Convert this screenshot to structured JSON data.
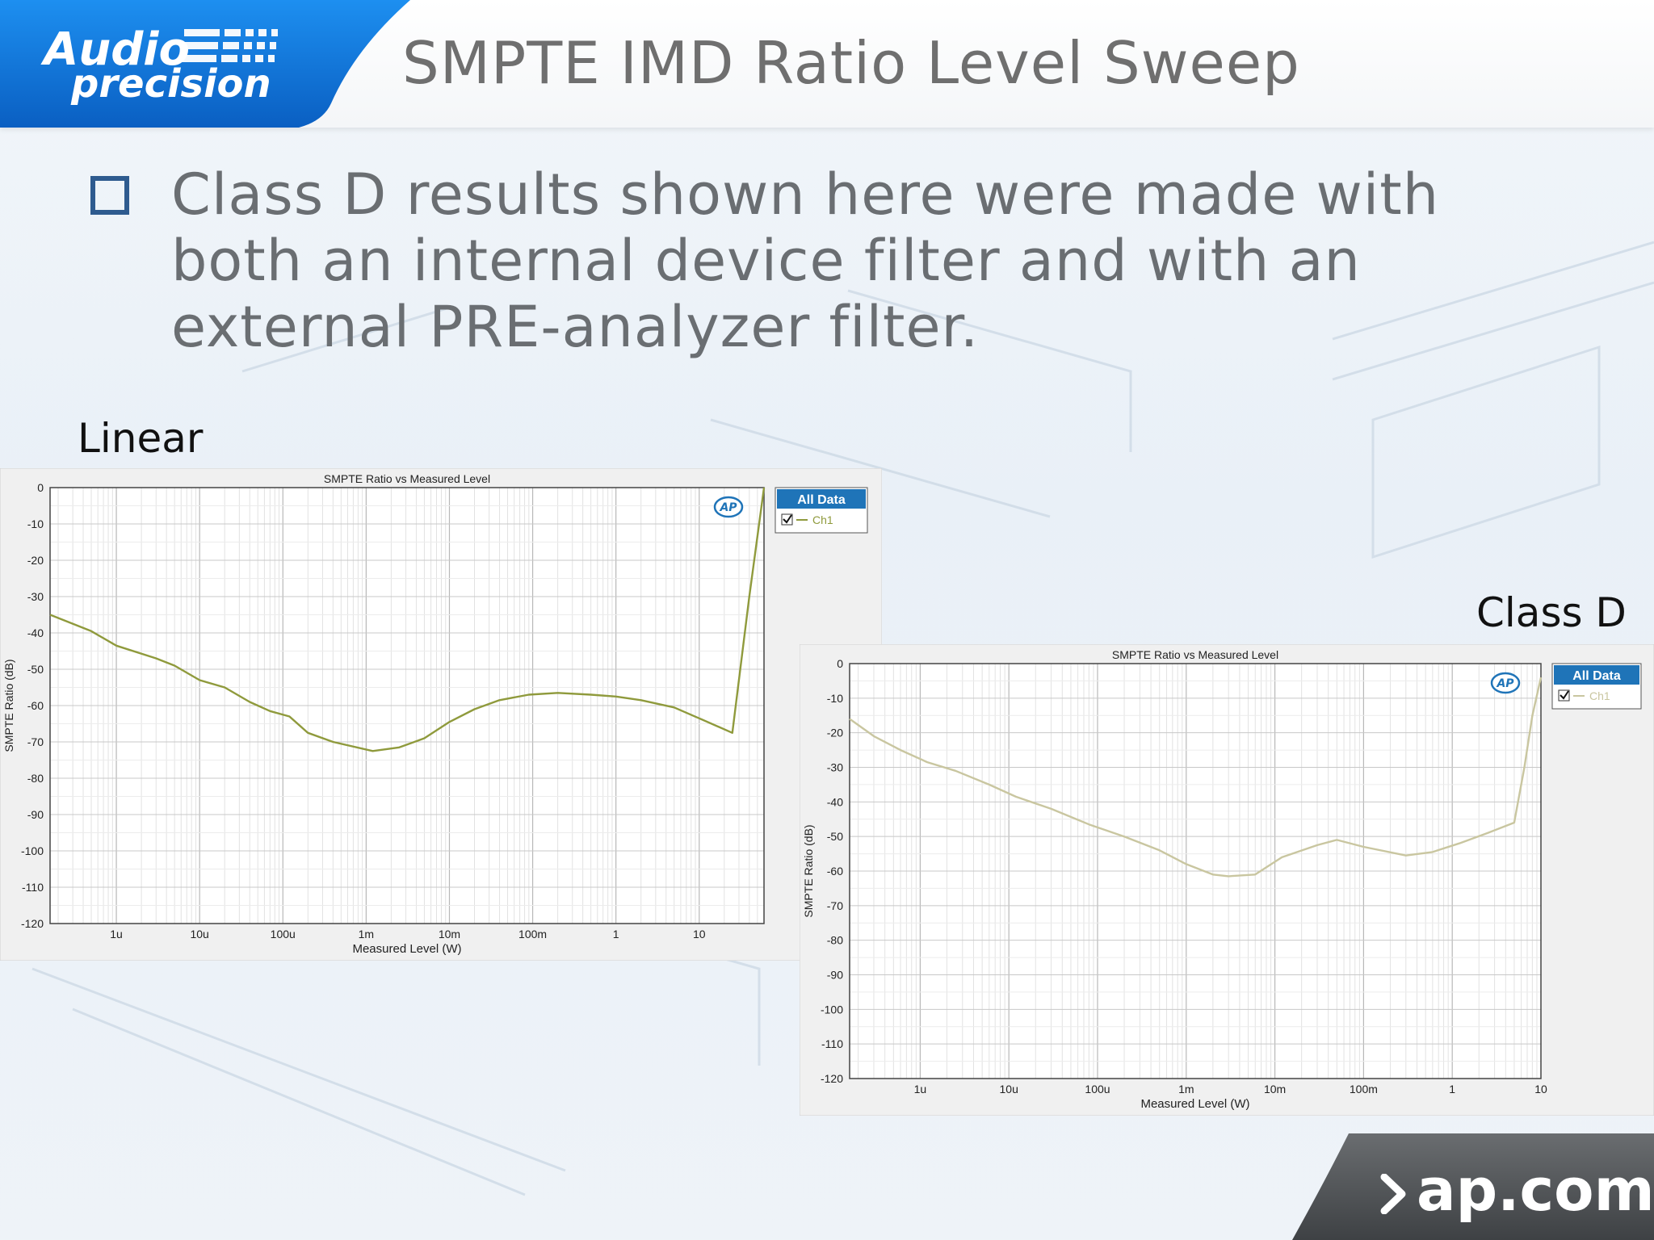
{
  "header": {
    "title": "SMPTE IMD Ratio Level Sweep",
    "logo_line1": "Audio",
    "logo_line2": "precision"
  },
  "bullet": {
    "text": "Class D results shown here were made with both an internal device filter and with an external PRE-analyzer filter."
  },
  "footer": {
    "text": "ap.com"
  },
  "colors": {
    "brand_blue": "#0a6fd0",
    "bullet_blue": "#2e5b8f",
    "trace_linear": "#8f9a3c",
    "trace_classd": "#c9c6a0",
    "legend_header": "#1f74b8"
  },
  "chart_data": [
    {
      "label": "Linear",
      "type": "line",
      "title": "SMPTE Ratio vs Measured Level",
      "xlabel": "Measured Level (W)",
      "ylabel": "SMPTE Ratio (dB)",
      "x_scale": "log",
      "xlim": [
        1.6e-07,
        60
      ],
      "ylim": [
        -120,
        0
      ],
      "yticks": [
        0,
        -10,
        -20,
        -30,
        -40,
        -50,
        -60,
        -70,
        -80,
        -90,
        -100,
        -110,
        -120
      ],
      "yticklabels": [
        "0",
        "-10",
        "-20",
        "-30",
        "-40",
        "-50",
        "-60",
        "-70",
        "-80",
        "-90",
        "-100",
        "-110",
        "-120"
      ],
      "xticks": [
        1e-06,
        1e-05,
        0.0001,
        0.001,
        0.01,
        0.1,
        1,
        10
      ],
      "xticklabels": [
        "1u",
        "10u",
        "100u",
        "1m",
        "10m",
        "100m",
        "1",
        "10"
      ],
      "grid": true,
      "legend": {
        "header": "All Data",
        "placement": "right",
        "entries": [
          "Ch1"
        ]
      },
      "series": [
        {
          "name": "Ch1",
          "x": [
            1.6e-07,
            5e-07,
            1e-06,
            3e-06,
            5e-06,
            1e-05,
            2e-05,
            4e-05,
            7e-05,
            0.00012,
            0.0002,
            0.0004,
            0.0012,
            0.0025,
            0.005,
            0.01,
            0.02,
            0.04,
            0.09,
            0.2,
            0.5,
            1,
            2,
            5,
            10,
            25,
            40,
            60
          ],
          "y": [
            -35,
            -39.5,
            -43.5,
            -47,
            -49,
            -53,
            -55,
            -59,
            -61.5,
            -63,
            -67.5,
            -70,
            -72.5,
            -71.5,
            -69,
            -64.5,
            -61,
            -58.5,
            -57,
            -56.5,
            -57,
            -57.5,
            -58.5,
            -60.5,
            -63.5,
            -67.5,
            -30,
            0
          ]
        }
      ]
    },
    {
      "label": "Class D",
      "type": "line",
      "title": "SMPTE Ratio vs Measured Level",
      "xlabel": "Measured Level (W)",
      "ylabel": "SMPTE Ratio (dB)",
      "x_scale": "log",
      "xlim": [
        1.6e-07,
        10
      ],
      "ylim": [
        -120,
        0
      ],
      "yticks": [
        0,
        -10,
        -20,
        -30,
        -40,
        -50,
        -60,
        -70,
        -80,
        -90,
        -100,
        -110,
        -120
      ],
      "yticklabels": [
        "0",
        "-10",
        "-20",
        "-30",
        "-40",
        "-50",
        "-60",
        "-70",
        "-80",
        "-90",
        "-100",
        "-110",
        "-120"
      ],
      "xticks": [
        1e-06,
        1e-05,
        0.0001,
        0.001,
        0.01,
        0.1,
        1,
        10
      ],
      "xticklabels": [
        "1u",
        "10u",
        "100u",
        "1m",
        "10m",
        "100m",
        "1",
        "10"
      ],
      "grid": true,
      "legend": {
        "header": "All Data",
        "placement": "right",
        "entries": [
          "Ch1"
        ]
      },
      "series": [
        {
          "name": "Ch1",
          "x": [
            1.6e-07,
            3e-07,
            6e-07,
            1.2e-06,
            2.5e-06,
            6e-06,
            1.2e-05,
            3e-05,
            8e-05,
            0.0002,
            0.0005,
            0.001,
            0.002,
            0.003,
            0.006,
            0.012,
            0.03,
            0.05,
            0.1,
            0.3,
            0.6,
            1.2,
            2.5,
            5,
            6.5,
            8,
            10
          ],
          "y": [
            -16,
            -21,
            -25,
            -28.5,
            -31,
            -35,
            -38.5,
            -42,
            -46.5,
            -50,
            -54,
            -58,
            -61,
            -61.5,
            -61,
            -56,
            -52.5,
            -51,
            -53,
            -55.5,
            -54.5,
            -52,
            -49,
            -46,
            -30,
            -15,
            -4
          ]
        }
      ]
    }
  ]
}
